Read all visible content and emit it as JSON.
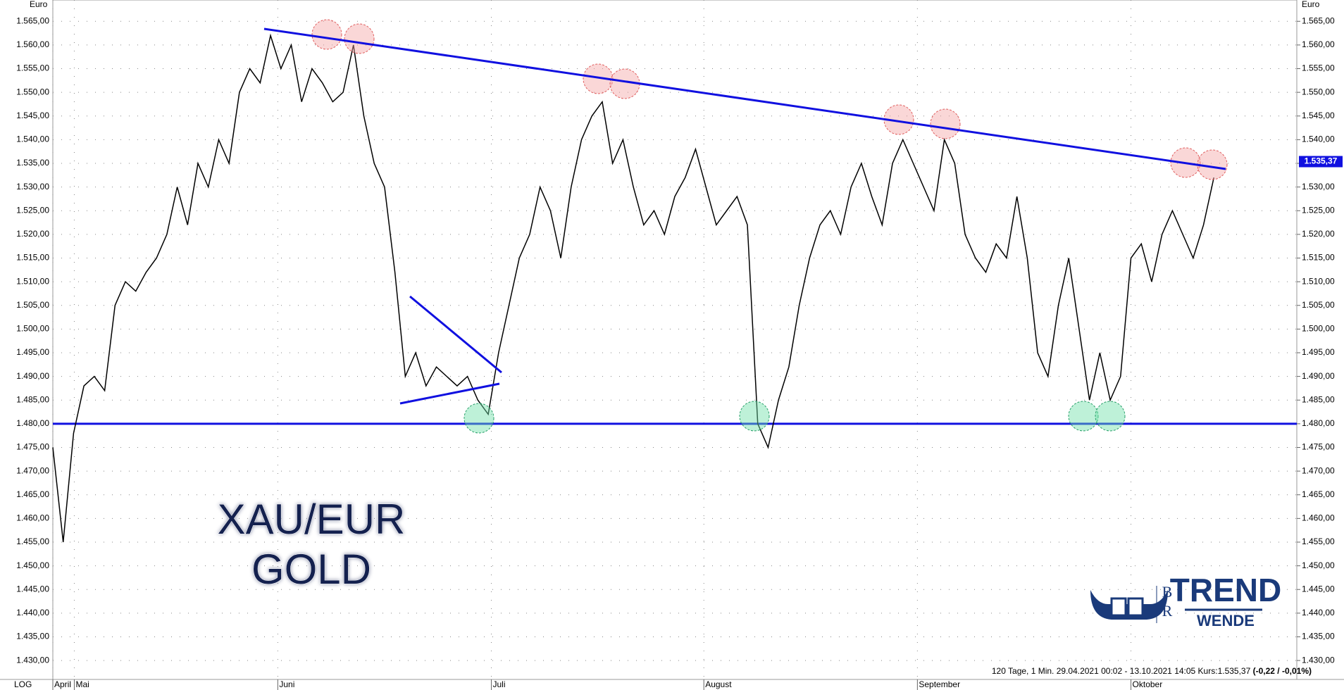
{
  "chart_data": {
    "type": "line",
    "y_unit": "Euro",
    "scale_label": "LOG",
    "name": "XAU/EUR",
    "subtitle": "GOLD",
    "info": "120 Tage, 1 Min. 29.04.2021 00:02 - 13.10.2021 14:05  Kurs:1.535,37",
    "change": "(-0,22 / -0,01%)",
    "logo": {
      "b": "B",
      "r": "R",
      "line1": "TREND",
      "line2": "WENDE"
    },
    "last_price": {
      "value": 1535.37,
      "label": "1.535,37"
    },
    "support": 1480,
    "series": [
      {
        "color": "#000000",
        "values": [
          1475,
          1455,
          1478,
          1488,
          1490,
          1487,
          1505,
          1510,
          1508,
          1512,
          1515,
          1520,
          1530,
          1522,
          1535,
          1530,
          1540,
          1535,
          1550,
          1555,
          1552,
          1562,
          1555,
          1560,
          1548,
          1555,
          1552,
          1548,
          1550,
          1560,
          1545,
          1535,
          1530,
          1512,
          1490,
          1495,
          1488,
          1492,
          1490,
          1488,
          1490,
          1485,
          1482,
          1495,
          1505,
          1515,
          1520,
          1530,
          1525,
          1515,
          1530,
          1540,
          1545,
          1548,
          1535,
          1540,
          1530,
          1522,
          1525,
          1520,
          1528,
          1532,
          1538,
          1530,
          1522,
          1525,
          1528,
          1522,
          1480,
          1475,
          1485,
          1492,
          1505,
          1515,
          1522,
          1525,
          1520,
          1530,
          1535,
          1528,
          1522,
          1535,
          1540,
          1535,
          1530,
          1525,
          1540,
          1535,
          1520,
          1515,
          1512,
          1518,
          1515,
          1528,
          1515,
          1495,
          1490,
          1505,
          1515,
          1500,
          1485,
          1495,
          1485,
          1490,
          1515,
          1518,
          1510,
          1520,
          1525,
          1520,
          1515,
          1522,
          1532
        ]
      }
    ],
    "xlim": [
      0,
      120
    ],
    "xticks": [
      {
        "value": 0,
        "label": "April"
      },
      {
        "value": 2.07,
        "label": "Mai"
      },
      {
        "value": 21.7,
        "label": "Juni"
      },
      {
        "value": 42.3,
        "label": "Juli"
      },
      {
        "value": 62.8,
        "label": "August"
      },
      {
        "value": 83.4,
        "label": "September"
      },
      {
        "value": 104,
        "label": "Oktober"
      }
    ],
    "ylim": [
      1426,
      1569.5
    ],
    "yticks": [
      {
        "value": 1430,
        "label": "1.430,00"
      },
      {
        "value": 1435,
        "label": "1.435,00"
      },
      {
        "value": 1440,
        "label": "1.440,00"
      },
      {
        "value": 1445,
        "label": "1.445,00"
      },
      {
        "value": 1450,
        "label": "1.450,00"
      },
      {
        "value": 1455,
        "label": "1.455,00"
      },
      {
        "value": 1460,
        "label": "1.460,00"
      },
      {
        "value": 1465,
        "label": "1.465,00"
      },
      {
        "value": 1470,
        "label": "1.470,00"
      },
      {
        "value": 1475,
        "label": "1.475,00"
      },
      {
        "value": 1480,
        "label": "1.480,00"
      },
      {
        "value": 1485,
        "label": "1.485,00"
      },
      {
        "value": 1490,
        "label": "1.490,00"
      },
      {
        "value": 1495,
        "label": "1.495,00"
      },
      {
        "value": 1500,
        "label": "1.500,00"
      },
      {
        "value": 1505,
        "label": "1.505,00"
      },
      {
        "value": 1510,
        "label": "1.510,00"
      },
      {
        "value": 1515,
        "label": "1.515,00"
      },
      {
        "value": 1520,
        "label": "1.520,00"
      },
      {
        "value": 1525,
        "label": "1.525,00"
      },
      {
        "value": 1530,
        "label": "1.530,00"
      },
      {
        "value": 1535,
        "label": "1.535,00"
      },
      {
        "value": 1540,
        "label": "1.540,00"
      },
      {
        "value": 1545,
        "label": "1.545,00"
      },
      {
        "value": 1550,
        "label": "1.550,00"
      },
      {
        "value": 1555,
        "label": "1.555,00"
      },
      {
        "value": 1560,
        "label": "1.560,00"
      },
      {
        "value": 1565,
        "label": "1.565,00"
      }
    ],
    "grid": true
  }
}
